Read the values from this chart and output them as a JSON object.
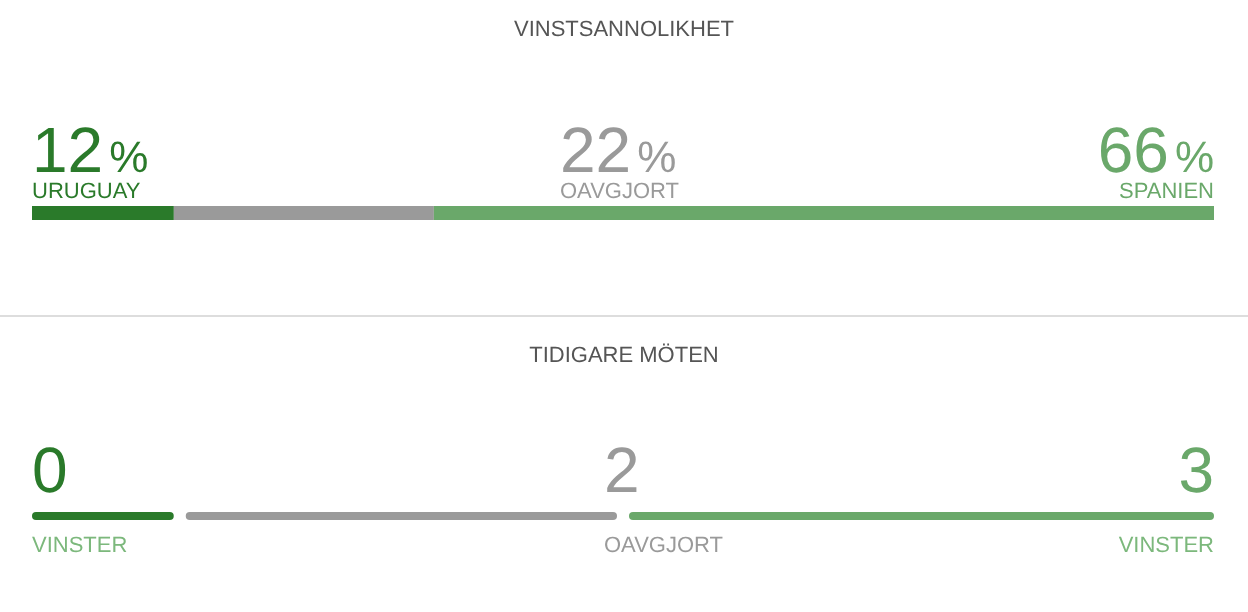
{
  "chart_data": [
    {
      "type": "bar",
      "title": "VINSTSANNOLIKHET",
      "orientation": "horizontal",
      "stacked": true,
      "categories": [
        null
      ],
      "tick_labels": false,
      "series": [
        {
          "name": "URUGUAY",
          "color": "#2a7a2a",
          "values": [
            12
          ],
          "value_labels": [
            "12%"
          ]
        },
        {
          "name": "OAVGJORT",
          "color": "#9a9a9a",
          "values": [
            22
          ],
          "value_labels": [
            "22%"
          ]
        },
        {
          "name": "SPANIEN",
          "color": "#6aa86a",
          "values": [
            66
          ],
          "value_labels": [
            "66%"
          ]
        }
      ]
    },
    {
      "type": "other",
      "title": "TIDIGARE MÖTEN",
      "categories": [
        "VINSTER",
        "OAVGJORT",
        "VINSTER"
      ],
      "values": [
        0,
        2,
        3
      ],
      "data_labels": true,
      "colors": [
        "#2a7a2a",
        "#9a9a9a",
        "#6aa86a"
      ]
    }
  ]
}
